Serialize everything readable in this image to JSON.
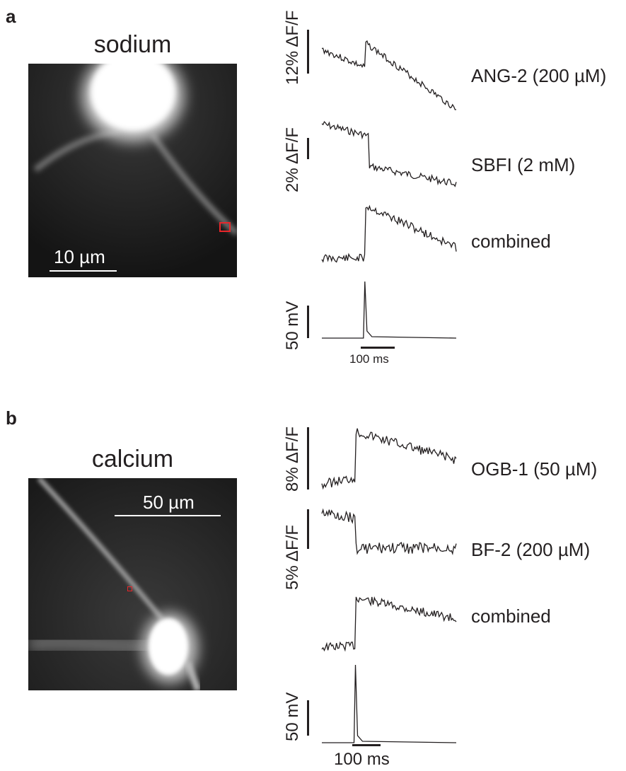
{
  "panels": [
    {
      "letter": "a",
      "image_title": "sodium",
      "image_scalebar": "10 µm",
      "traces": [
        {
          "label": "ANG-2 (200 µM)",
          "scale_label": "12% ΔF/F"
        },
        {
          "label": "SBFI (2 mM)",
          "scale_label": "2% ΔF/F"
        },
        {
          "label": "combined",
          "scale_label": ""
        },
        {
          "label": "",
          "scale_label": "50 mV"
        }
      ],
      "time_scalebar": "100 ms"
    },
    {
      "letter": "b",
      "image_title": "calcium",
      "image_scalebar": "50 µm",
      "traces": [
        {
          "label": "OGB-1 (50 µM)",
          "scale_label": "8% ΔF/F"
        },
        {
          "label": "BF-2 (200 µM)",
          "scale_label": "5% ΔF/F"
        },
        {
          "label": "combined",
          "scale_label": ""
        },
        {
          "label": "",
          "scale_label": "50 mV"
        }
      ],
      "time_scalebar": "100 ms"
    }
  ],
  "colors": {
    "roi": "#e8262a",
    "trace": "#231f20"
  }
}
